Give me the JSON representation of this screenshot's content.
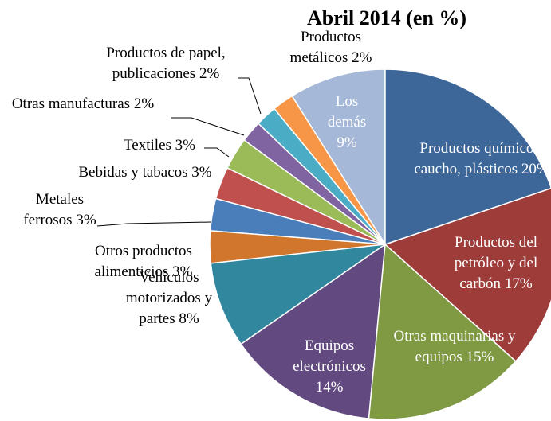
{
  "chart_data": {
    "type": "pie",
    "title": "Abril 2014 (en %)",
    "categories": [
      "Productos químicos, caucho, plásticos",
      "Productos del petróleo y del carbón",
      "Otras maquinarias y equipos",
      "Equipos electrónicos",
      "Vehículos motorizados y partes",
      "Otros productos alimenticios",
      "Metales ferrosos",
      "Bebidas y tabacos",
      "Textiles",
      "Otras manufacturas",
      "Productos de papel, publicaciones",
      "Productos metálicos",
      "Los demás"
    ],
    "values": [
      20,
      17,
      15,
      14,
      8,
      3,
      3,
      3,
      3,
      2,
      2,
      2,
      9
    ],
    "value_labels": [
      "20%",
      "17%",
      "15%",
      "14%",
      "8%",
      "3%",
      "3%",
      "3%",
      "3%",
      "2%",
      "2%",
      "2%",
      "9%"
    ],
    "colors": [
      "#3d6699",
      "#9e3c3a",
      "#7f9a42",
      "#624a80",
      "#31889e",
      "#d0772d",
      "#4a7ebb",
      "#c0504d",
      "#9bbb59",
      "#8064a2",
      "#4bacc6",
      "#f79646",
      "#a5b8d8"
    ]
  }
}
